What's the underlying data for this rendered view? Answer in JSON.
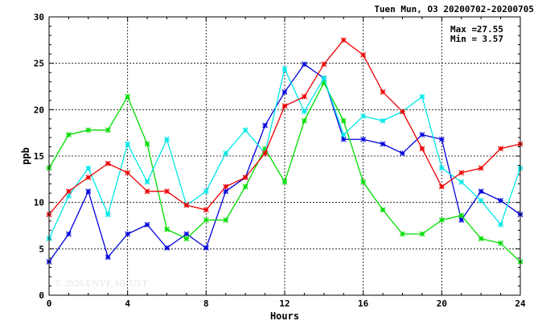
{
  "chart_data": {
    "type": "line",
    "title": "Tuen Mun, O3 20200702-20200705",
    "xlabel": "Hours",
    "ylabel": "ppb",
    "xlim": [
      0,
      24
    ],
    "ylim": [
      0,
      30
    ],
    "x_ticks": [
      "0",
      "4",
      "8",
      "12",
      "16",
      "20",
      "24"
    ],
    "y_ticks": [
      "0",
      "5",
      "10",
      "15",
      "20",
      "25",
      "30"
    ],
    "grid": true,
    "x": [
      0,
      1,
      2,
      3,
      4,
      5,
      6,
      7,
      8,
      9,
      10,
      11,
      12,
      13,
      14,
      15,
      16,
      17,
      18,
      19,
      20,
      21,
      22,
      23,
      24
    ],
    "series": [
      {
        "color": "#0000dd",
        "values": [
          3.6,
          6.6,
          11.2,
          4.1,
          6.6,
          7.6,
          5.1,
          6.6,
          5.1,
          11.2,
          12.7,
          18.3,
          21.9,
          24.9,
          23.4,
          16.8,
          16.8,
          16.3,
          15.3,
          17.3,
          16.8,
          8.1,
          11.2,
          10.2,
          8.7
        ]
      },
      {
        "color": "#00dd00",
        "values": [
          13.7,
          17.3,
          17.8,
          17.8,
          21.4,
          16.3,
          7.1,
          6.1,
          8.1,
          8.1,
          11.7,
          15.8,
          12.2,
          18.8,
          22.9,
          18.8,
          12.2,
          9.2,
          6.6,
          6.6,
          8.1,
          8.6,
          6.1,
          5.6,
          3.6
        ]
      },
      {
        "color": "#00e8e8",
        "values": [
          6.1,
          10.7,
          13.7,
          8.7,
          16.3,
          12.2,
          16.8,
          9.7,
          11.2,
          15.3,
          17.8,
          15.3,
          24.4,
          19.8,
          23.4,
          17.3,
          19.3,
          18.8,
          19.8,
          21.4,
          13.7,
          12.2,
          10.2,
          7.6,
          13.7
        ]
      },
      {
        "color": "#ee0000",
        "values": [
          8.7,
          11.2,
          12.7,
          14.2,
          13.2,
          11.2,
          11.2,
          9.7,
          9.2,
          11.7,
          12.7,
          15.3,
          20.4,
          21.4,
          24.9,
          27.5,
          25.9,
          21.9,
          19.8,
          15.8,
          11.7,
          13.2,
          13.7,
          15.8,
          16.3
        ]
      }
    ],
    "stats": {
      "max_label": "Max =",
      "max_value": "27.55",
      "min_label": "Min =",
      "min_value": "3.57"
    },
    "watermark": "© 2026  ENVF, HKUST"
  }
}
